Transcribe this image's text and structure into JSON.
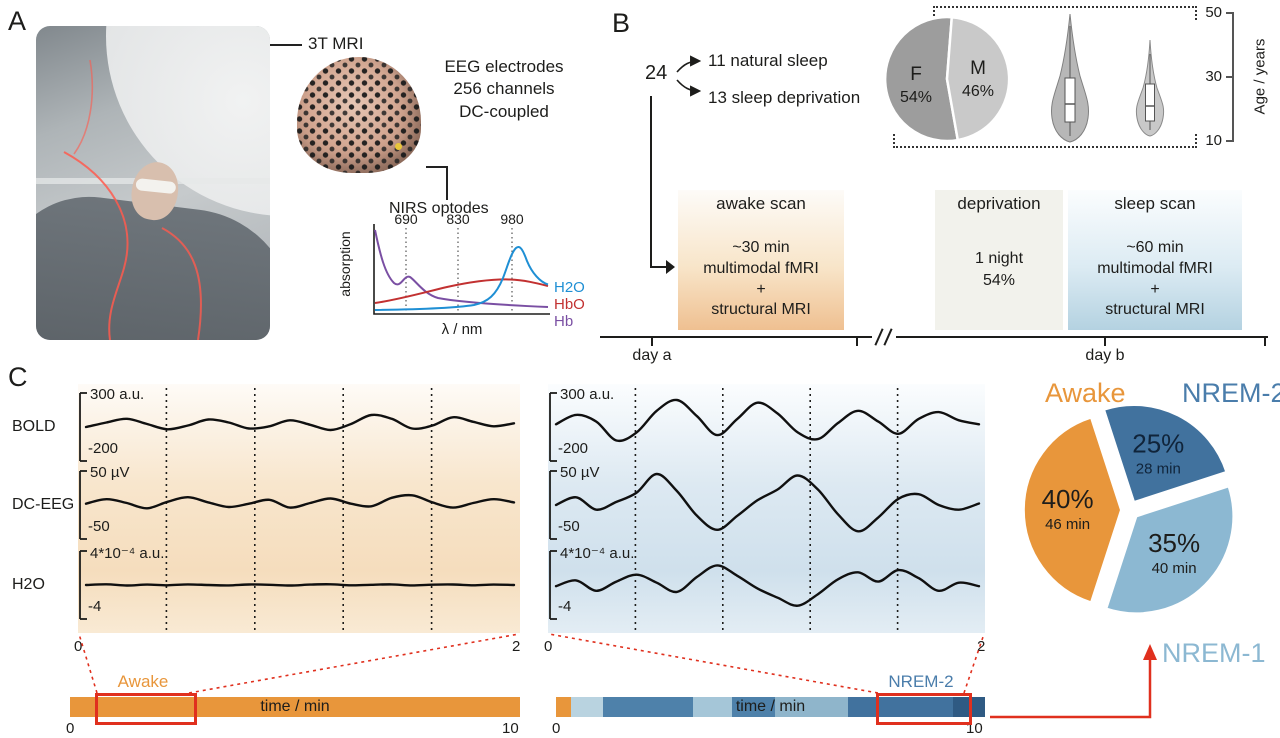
{
  "colors": {
    "awake_orange": "#e8963b",
    "nrem2_blue": "#41729e",
    "nrem1_blue": "#8cb8d2",
    "red_accent": "#e0301e",
    "text_dark": "#1d1d1b"
  },
  "panelA": {
    "label": "A",
    "mri_label": "3T MRI",
    "eeg_cap": {
      "lines": [
        "EEG electrodes",
        "256 channels",
        "DC-coupled"
      ]
    },
    "nirs": {
      "title": "NIRS optodes",
      "ylabel": "absorption",
      "xlabel": "λ / nm",
      "x_ticks": [
        "690",
        "830",
        "980"
      ],
      "legend": [
        {
          "name": "H2O",
          "color": "#1f8fd4"
        },
        {
          "name": "HbO",
          "color": "#c23131"
        },
        {
          "name": "Hb",
          "color": "#7a4fa3"
        }
      ]
    }
  },
  "panelB": {
    "label": "B",
    "cohort": {
      "total": "24",
      "groups": [
        "11 natural sleep",
        "13 sleep deprivation"
      ]
    },
    "sex_pie": {
      "slices": [
        {
          "label": "F",
          "pct": "54%",
          "value": 54,
          "color": "#9d9d9d"
        },
        {
          "label": "M",
          "pct": "46%",
          "value": 46,
          "color": "#c9c9c9"
        }
      ]
    },
    "age_axis": {
      "label": "Age / years",
      "ticks": [
        "50",
        "30",
        "10"
      ]
    },
    "protocol": {
      "awake": {
        "title": "awake scan",
        "lines": [
          "~30 min",
          "multimodal fMRI",
          "+",
          "structural MRI"
        ]
      },
      "deprivation": {
        "title": "deprivation",
        "lines": [
          "1 night",
          "54%"
        ]
      },
      "sleep": {
        "title": "sleep scan",
        "lines": [
          "~60 min",
          "multimodal fMRI",
          "+",
          "structural MRI"
        ]
      },
      "day_a": "day a",
      "day_b": "day b"
    }
  },
  "panelC": {
    "label": "C",
    "rows": [
      {
        "name": "BOLD",
        "ymax": "300 a.u.",
        "ymin": "-200"
      },
      {
        "name": "DC-EEG",
        "ymax": "50 µV",
        "ymin": "-50"
      },
      {
        "name": "H2O",
        "ymax": "4*10⁻⁴ a.u.",
        "ymin": "-4"
      }
    ],
    "x_ticks": {
      "start": "0",
      "end": "2"
    },
    "bars": {
      "time_label": "time / min",
      "start": "0",
      "end": "10",
      "left": {
        "label": "Awake",
        "color": "#e8963b"
      },
      "right": {
        "label": "NREM-2",
        "label_color": "#4a7dab",
        "segments": [
          {
            "color": "#e8963b",
            "frac": 0.035
          },
          {
            "color": "#b9d3e0",
            "frac": 0.075
          },
          {
            "color": "#4e81aa",
            "frac": 0.21
          },
          {
            "color": "#a5c6d8",
            "frac": 0.09
          },
          {
            "color": "#4e81aa",
            "frac": 0.1
          },
          {
            "color": "#8fb5cb",
            "frac": 0.17
          },
          {
            "color": "#41729e",
            "frac": 0.245
          },
          {
            "color": "#2f5a83",
            "frac": 0.075
          }
        ]
      }
    },
    "pie": {
      "slices": [
        {
          "label": "Awake",
          "pct": "40%",
          "duration": "46 min",
          "value": 40,
          "color": "#e8963b",
          "label_color": "#e8963b",
          "text_color": "#1d1d1b"
        },
        {
          "label": "NREM-2",
          "pct": "25%",
          "duration": "28 min",
          "value": 25,
          "color": "#41729e",
          "label_color": "#4a7dab",
          "text_color": "#10243a"
        },
        {
          "label": "NREM-1",
          "pct": "35%",
          "duration": "40 min",
          "value": 35,
          "color": "#8cb8d2",
          "label_color": "#8cb8d2",
          "text_color": "#1d1d1b"
        }
      ]
    }
  },
  "chart_data": [
    {
      "id": "nirs-absorption-spectra",
      "type": "line",
      "title": "NIRS optodes",
      "xlabel": "λ / nm",
      "ylabel": "absorption",
      "x_ticks": [
        690,
        830,
        980
      ],
      "series": [
        {
          "name": "H2O",
          "color": "#1f8fd4",
          "description": "low absorption, sharp peak near 980 nm"
        },
        {
          "name": "HbO",
          "color": "#c23131",
          "description": "broad shallow hump peaking around 900 nm"
        },
        {
          "name": "Hb",
          "color": "#7a4fa3",
          "description": "high at short wavelengths, drops steeply, small bump near 760 nm"
        }
      ]
    },
    {
      "id": "cohort",
      "type": "other",
      "total": 24,
      "groups": [
        {
          "label": "natural sleep",
          "n": 11
        },
        {
          "label": "sleep deprivation",
          "n": 13
        }
      ]
    },
    {
      "id": "sex-distribution",
      "type": "pie",
      "slices": [
        {
          "label": "F",
          "value": 54
        },
        {
          "label": "M",
          "value": 46
        }
      ],
      "unit": "percent"
    },
    {
      "id": "age-distribution",
      "type": "violin",
      "ylabel": "Age / years",
      "axis_range": [
        10,
        50
      ],
      "n_violins": 2
    },
    {
      "id": "multimodal-traces",
      "type": "line",
      "xlabel": "time / min",
      "x_range": [
        0,
        2
      ],
      "rows": [
        {
          "name": "BOLD",
          "unit": "a.u.",
          "ylim": [
            -200,
            300
          ]
        },
        {
          "name": "DC-EEG",
          "unit": "µV",
          "ylim": [
            -50,
            50
          ]
        },
        {
          "name": "H2O",
          "unit": "a.u.",
          "ylim": [
            -0.0004,
            0.0004
          ]
        }
      ],
      "conditions": [
        {
          "name": "awake",
          "tint": "#f6e0c2"
        },
        {
          "name": "sleep",
          "tint": "#d5e4ef"
        }
      ],
      "normalized_series": {
        "awake": {
          "BOLD": [
            0.0,
            0.3,
            0.55,
            0.2,
            -0.15,
            0.1,
            0.5,
            0.3,
            -0.1,
            0.05,
            0.45,
            0.15,
            -0.2,
            0.2,
            0.8,
            0.55,
            -0.1,
            0.1,
            0.65,
            0.35,
            0.05,
            0.25
          ],
          "DC-EEG": [
            0.1,
            0.45,
            0.15,
            -0.25,
            0.25,
            0.6,
            0.2,
            -0.15,
            0.1,
            0.4,
            -0.2,
            0.15,
            0.5,
            0.1,
            -0.1,
            0.55,
            0.75,
            0.2,
            -0.2,
            0.15,
            0.45,
            0.2
          ],
          "H2O": [
            0,
            0.15,
            -0.1,
            0.08,
            -0.05,
            0.12,
            0,
            -0.08,
            0.1,
            0.05,
            -0.1,
            0.08,
            0.15,
            -0.05,
            0.05,
            0.12,
            -0.08,
            0.06,
            0.1,
            -0.05,
            0.08,
            0
          ]
        },
        "sleep": {
          "BOLD": [
            0.1,
            0.45,
            0.2,
            -0.5,
            -0.2,
            0.6,
            1.0,
            0.4,
            -0.3,
            0.3,
            0.9,
            0.5,
            -0.2,
            -0.45,
            0.15,
            0.6,
            0.2,
            -0.25,
            0.3,
            0.55,
            0.25,
            0.1
          ],
          "DC-EEG": [
            0.0,
            0.25,
            -0.15,
            0.1,
            0.4,
            1.0,
            0.45,
            -0.35,
            -0.8,
            -0.35,
            0.15,
            0.5,
            0.95,
            0.5,
            -0.3,
            -0.85,
            -0.4,
            0.2,
            0.35,
            0.0,
            -0.15,
            0.05
          ],
          "H2O": [
            -0.05,
            0.2,
            -0.25,
            0.15,
            0.45,
            0.1,
            -0.3,
            0.35,
            0.85,
            0.4,
            -0.15,
            -0.55,
            -0.9,
            -0.4,
            0.25,
            0.55,
            0.15,
            0.65,
            0.3,
            -0.25,
            0.1,
            -0.05
          ]
        }
      }
    },
    {
      "id": "hypnogram-bars",
      "type": "timeline",
      "xlabel": "time / min",
      "x_range": [
        0,
        10
      ],
      "left_bar": [
        {
          "stage": "Awake",
          "from": 0,
          "to": 10
        }
      ],
      "right_bar": [
        {
          "stage": "Awake",
          "from": 0,
          "to": 0.35
        },
        {
          "stage": "NREM-1",
          "from": 0.35,
          "to": 1.1
        },
        {
          "stage": "NREM-2",
          "from": 1.1,
          "to": 3.2
        },
        {
          "stage": "NREM-1",
          "from": 3.2,
          "to": 4.1
        },
        {
          "stage": "NREM-2",
          "from": 4.1,
          "to": 5.1
        },
        {
          "stage": "NREM-1",
          "from": 5.1,
          "to": 6.8
        },
        {
          "stage": "NREM-2",
          "from": 6.8,
          "to": 9.25
        },
        {
          "stage": "NREM-2",
          "from": 9.25,
          "to": 10
        }
      ]
    },
    {
      "id": "sleep-stage-distribution",
      "type": "pie",
      "slices": [
        {
          "label": "Awake",
          "pct": 40,
          "duration_min": 46
        },
        {
          "label": "NREM-2",
          "pct": 25,
          "duration_min": 28
        },
        {
          "label": "NREM-1",
          "pct": 35,
          "duration_min": 40
        }
      ]
    }
  ]
}
